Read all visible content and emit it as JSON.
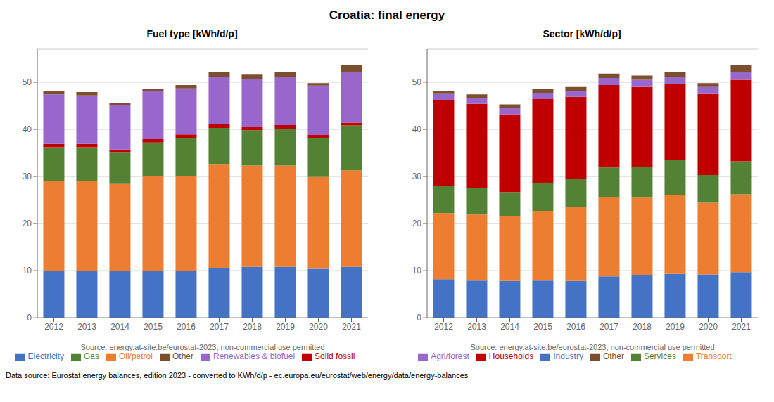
{
  "title": "Croatia: final energy",
  "annotations": [
    "Data source: Eurostat energy balances, edition 2023 - converted to KWh/d/p - ec.europa.eu/eurostat/web/energy/data/energy-balances"
  ],
  "chart_data": [
    {
      "type": "bar",
      "stacked": true,
      "title": "Fuel type [kWh/d/p]",
      "xlabel": "Source: energy.at-site.be/eurostat-2023, non-commercial use permitted",
      "categories": [
        "2012",
        "2013",
        "2014",
        "2015",
        "2016",
        "2017",
        "2018",
        "2019",
        "2020",
        "2021"
      ],
      "series": [
        {
          "name": "Electricity",
          "color": "#4472c4",
          "values": [
            10.0,
            10.0,
            9.9,
            10.0,
            10.0,
            10.5,
            10.8,
            10.8,
            10.4,
            10.8
          ]
        },
        {
          "name": "Oil/petrol",
          "color": "#ed7d31",
          "values": [
            19.0,
            19.0,
            18.5,
            20.0,
            20.0,
            22.0,
            21.5,
            21.5,
            19.5,
            20.5
          ]
        },
        {
          "name": "Gas",
          "color": "#548235",
          "values": [
            7.2,
            7.2,
            6.8,
            7.2,
            8.2,
            7.8,
            7.5,
            7.8,
            8.2,
            9.5
          ]
        },
        {
          "name": "Solid fossil",
          "color": "#c00000",
          "values": [
            0.7,
            0.7,
            0.5,
            0.7,
            0.7,
            0.9,
            0.7,
            0.8,
            0.7,
            0.6
          ]
        },
        {
          "name": "Renewables & biofuel",
          "color": "#9966cc",
          "values": [
            10.5,
            10.3,
            9.5,
            10.2,
            9.8,
            10.0,
            10.2,
            10.2,
            10.5,
            10.8
          ]
        },
        {
          "name": "Other",
          "color": "#7b4f2e",
          "values": [
            0.7,
            0.7,
            0.4,
            0.5,
            0.7,
            0.9,
            0.9,
            1.0,
            0.5,
            1.5
          ]
        }
      ],
      "ylim": [
        0,
        57
      ],
      "yticks": [
        0,
        10,
        20,
        30,
        40,
        50
      ],
      "grid": true,
      "legend": "bottom"
    },
    {
      "type": "bar",
      "stacked": true,
      "title": "Sector [kWh/d/p]",
      "xlabel": "Source: energy.at-site.be/eurostat-2023, non-commercial use permitted",
      "categories": [
        "2012",
        "2013",
        "2014",
        "2015",
        "2016",
        "2017",
        "2018",
        "2019",
        "2020",
        "2021"
      ],
      "series": [
        {
          "name": "Industry",
          "color": "#4472c4",
          "values": [
            8.2,
            7.9,
            7.8,
            7.9,
            7.8,
            8.8,
            9.0,
            9.3,
            9.2,
            9.7
          ]
        },
        {
          "name": "Transport",
          "color": "#ed7d31",
          "values": [
            14.0,
            14.0,
            13.7,
            14.8,
            15.8,
            16.8,
            16.5,
            16.8,
            15.2,
            16.5
          ]
        },
        {
          "name": "Services",
          "color": "#548235",
          "values": [
            5.8,
            5.7,
            5.2,
            5.9,
            5.8,
            6.3,
            6.5,
            7.5,
            5.9,
            7.0
          ]
        },
        {
          "name": "Households",
          "color": "#c00000",
          "values": [
            18.2,
            17.8,
            16.5,
            17.8,
            17.5,
            17.5,
            17.0,
            16.0,
            17.2,
            17.3
          ]
        },
        {
          "name": "Agri/forest",
          "color": "#9966cc",
          "values": [
            1.3,
            1.3,
            1.3,
            1.3,
            1.3,
            1.5,
            1.5,
            1.5,
            1.5,
            1.7
          ]
        },
        {
          "name": "Other",
          "color": "#7b4f2e",
          "values": [
            0.7,
            0.7,
            0.8,
            0.8,
            0.8,
            0.9,
            0.9,
            1.0,
            0.8,
            1.5
          ]
        }
      ],
      "ylim": [
        0,
        57
      ],
      "yticks": [
        0,
        10,
        20,
        30,
        40,
        50
      ],
      "grid": true,
      "legend": "bottom"
    }
  ]
}
